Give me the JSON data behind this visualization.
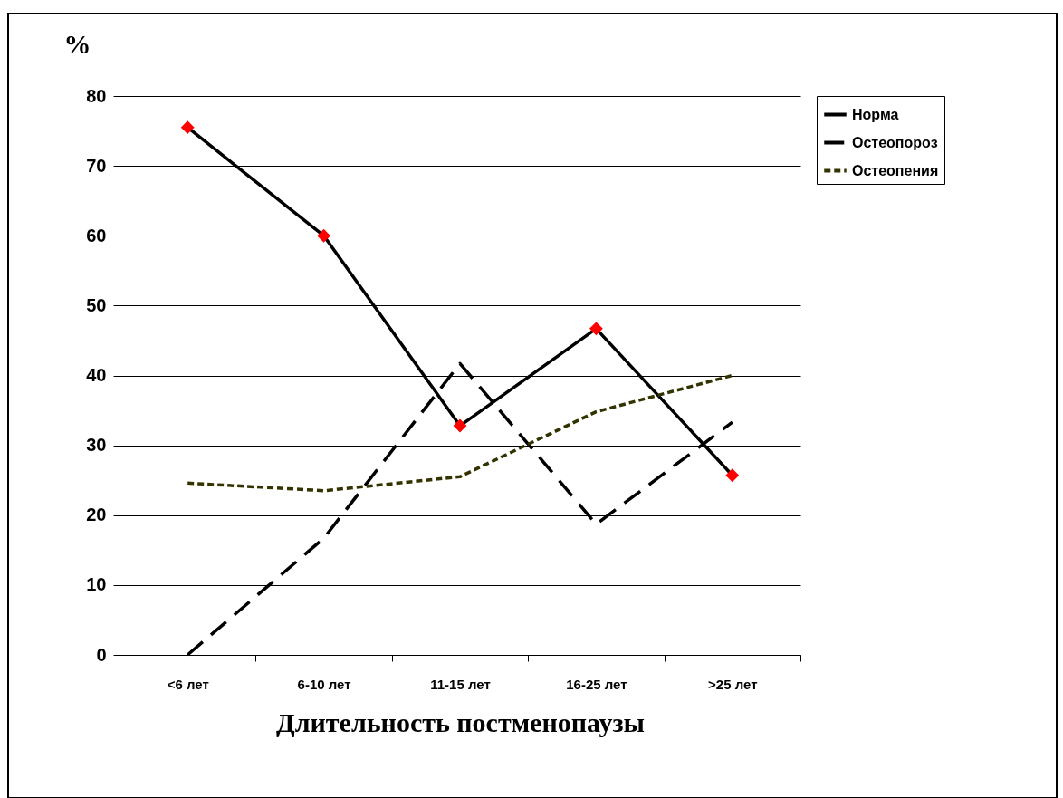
{
  "chart_data": {
    "type": "line",
    "xlabel": "Длительность постменопаузы",
    "ylabel": "%",
    "categories": [
      "<6 лет",
      "6-10 лет",
      "11-15 лет",
      "16-25 лет",
      ">25 лет"
    ],
    "series": [
      {
        "name": "Норма",
        "color": "#000000",
        "line_style": "solid",
        "marker": "diamond",
        "colors": [
          "#ff0000",
          "#ff0000",
          "#ff0000",
          "#ff0000",
          "#ff0000"
        ],
        "values": [
          75.5,
          60,
          32.8,
          46.7,
          25.7
        ]
      },
      {
        "name": "Остеопороз",
        "color": "#000000",
        "line_style": "dashed",
        "values": [
          0,
          16.7,
          41.7,
          18.7,
          33.3
        ]
      },
      {
        "name": "Остеопения",
        "color": "#333300",
        "line_style": "dotted",
        "values": [
          24.6,
          23.5,
          25.5,
          34.8,
          40
        ]
      }
    ],
    "ylim": [
      0,
      80
    ],
    "yticks": [
      0,
      10,
      20,
      30,
      40,
      50,
      60,
      70,
      80
    ],
    "grid": "y",
    "legend": "right"
  }
}
